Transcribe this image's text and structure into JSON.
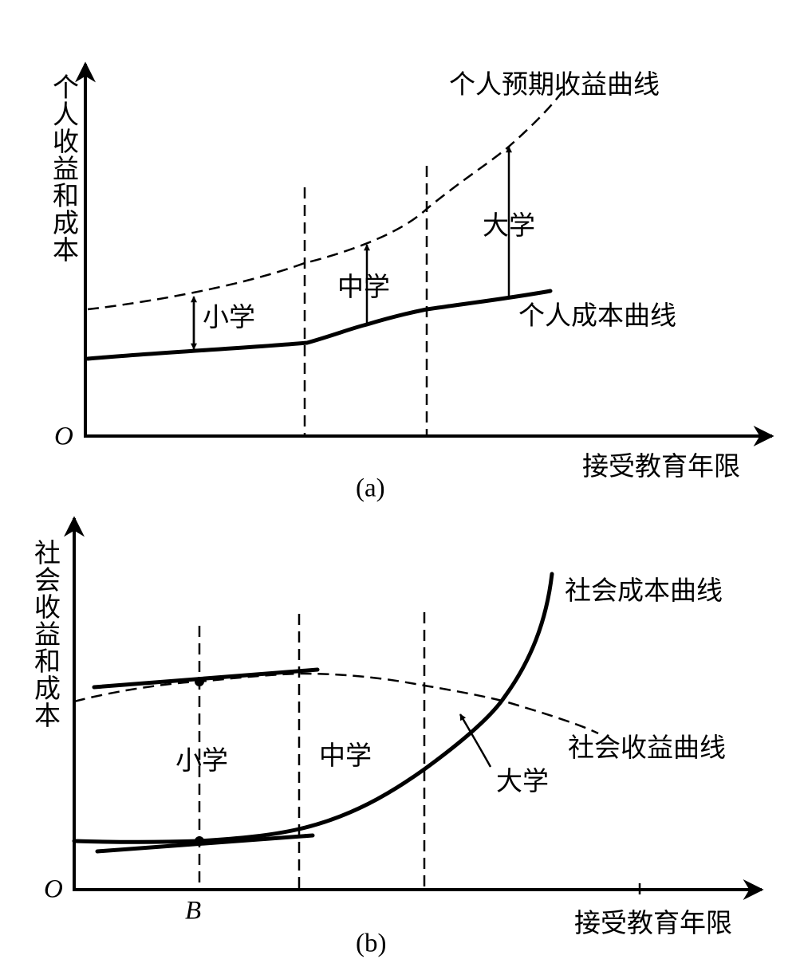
{
  "panel_a": {
    "y_axis_label": "个人收益和成本",
    "origin": "O",
    "x_axis_label": "接受教育年限",
    "caption": "(a)",
    "curves": {
      "expected_earnings": "个人预期收益曲线",
      "cost": "个人成本曲线"
    },
    "stages": [
      "小学",
      "中学",
      "大学"
    ]
  },
  "panel_b": {
    "y_axis_label": "社会收益和成本",
    "origin": "O",
    "point": "B",
    "x_axis_label": "接受教育年限",
    "caption": "(b)",
    "curves": {
      "cost": "社会成本曲线",
      "benefit": "社会收益曲线"
    },
    "stages": [
      "小学",
      "中学",
      "大学"
    ]
  }
}
